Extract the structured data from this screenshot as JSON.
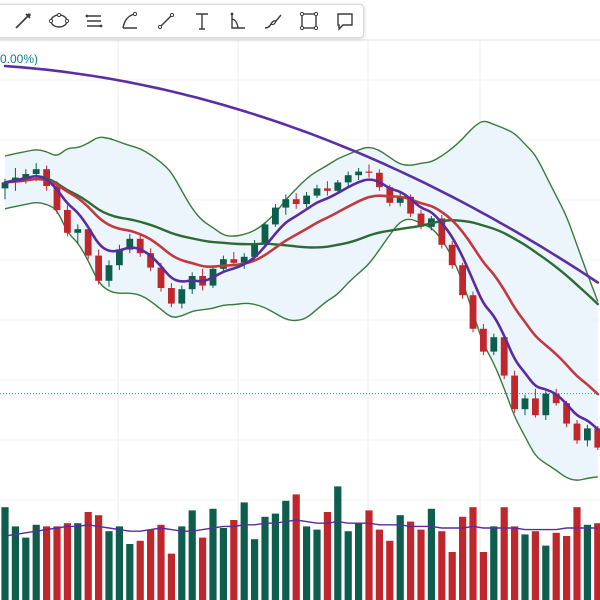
{
  "toolbar": {
    "tools": [
      {
        "name": "pencil-icon"
      },
      {
        "name": "ellipse-icon"
      },
      {
        "name": "parallel-lines-icon"
      },
      {
        "name": "arc-icon"
      },
      {
        "name": "trend-line-icon"
      },
      {
        "name": "text-icon"
      },
      {
        "name": "angle-icon"
      },
      {
        "name": "brush-icon"
      },
      {
        "name": "rectangle-icon"
      },
      {
        "name": "comment-icon"
      }
    ]
  },
  "legend": {
    "percent_text": "0.00%)"
  },
  "chart_data": {
    "type": "candlestick",
    "colors": {
      "up": "#0d5e4c",
      "down": "#c0272d",
      "ema_fast": "#5a2ca0",
      "ema_slow": "#c23a3f",
      "sma_long": "#2d6a36",
      "trend_200": "#5b2fa3",
      "bands": "#3a7a3a",
      "band_fill": "#e8f3fa"
    },
    "price": [
      [
        54.3,
        55.1,
        53.4,
        54.8
      ],
      [
        54.8,
        56.0,
        54.1,
        55.2
      ],
      [
        55.2,
        55.9,
        54.7,
        55.5
      ],
      [
        55.5,
        56.4,
        54.9,
        55.9
      ],
      [
        55.9,
        56.2,
        54.1,
        54.5
      ],
      [
        54.5,
        54.9,
        52.2,
        52.5
      ],
      [
        52.5,
        52.9,
        50.3,
        50.6
      ],
      [
        50.6,
        51.3,
        49.7,
        50.9
      ],
      [
        50.9,
        51.1,
        48.4,
        48.7
      ],
      [
        48.7,
        49.2,
        46.3,
        46.6
      ],
      [
        46.6,
        48.3,
        46.1,
        47.9
      ],
      [
        47.9,
        49.6,
        47.5,
        49.2
      ],
      [
        49.2,
        50.5,
        48.9,
        50.1
      ],
      [
        50.1,
        50.4,
        48.6,
        48.9
      ],
      [
        48.9,
        49.3,
        47.4,
        47.7
      ],
      [
        47.7,
        48.1,
        45.7,
        46.0
      ],
      [
        46.0,
        46.4,
        44.4,
        44.7
      ],
      [
        44.7,
        46.2,
        44.3,
        45.9
      ],
      [
        45.9,
        47.3,
        45.5,
        47.0
      ],
      [
        47.0,
        47.6,
        45.8,
        46.2
      ],
      [
        46.2,
        47.8,
        46.0,
        47.6
      ],
      [
        47.6,
        48.7,
        47.3,
        48.4
      ],
      [
        48.4,
        49.0,
        47.8,
        48.1
      ],
      [
        48.1,
        48.9,
        47.6,
        48.6
      ],
      [
        48.6,
        50.0,
        48.4,
        49.7
      ],
      [
        49.7,
        51.5,
        49.5,
        51.3
      ],
      [
        51.3,
        53.0,
        51.1,
        52.7
      ],
      [
        52.7,
        53.8,
        52.1,
        53.4
      ],
      [
        53.4,
        53.9,
        52.6,
        53.0
      ],
      [
        53.0,
        54.0,
        52.7,
        53.7
      ],
      [
        53.7,
        54.6,
        53.5,
        54.3
      ],
      [
        54.3,
        54.9,
        53.7,
        54.1
      ],
      [
        54.1,
        55.0,
        53.9,
        54.8
      ],
      [
        54.8,
        55.7,
        54.5,
        55.4
      ],
      [
        55.4,
        56.0,
        55.0,
        55.7
      ],
      [
        55.7,
        56.3,
        55.2,
        55.6
      ],
      [
        55.6,
        55.9,
        54.1,
        54.4
      ],
      [
        54.4,
        54.6,
        52.8,
        53.1
      ],
      [
        53.1,
        53.9,
        52.8,
        53.6
      ],
      [
        53.6,
        53.8,
        51.9,
        52.2
      ],
      [
        52.2,
        52.5,
        50.9,
        51.1
      ],
      [
        51.1,
        52.0,
        50.8,
        51.8
      ],
      [
        51.8,
        52.1,
        49.3,
        49.6
      ],
      [
        49.6,
        49.9,
        47.6,
        47.9
      ],
      [
        47.9,
        48.1,
        45.1,
        45.4
      ],
      [
        45.4,
        45.7,
        42.3,
        42.6
      ],
      [
        42.6,
        43.0,
        40.4,
        40.7
      ],
      [
        40.7,
        42.2,
        40.4,
        41.9
      ],
      [
        41.9,
        42.0,
        38.4,
        38.7
      ],
      [
        38.7,
        39.1,
        35.6,
        35.9
      ],
      [
        35.9,
        37.1,
        35.4,
        36.8
      ],
      [
        36.8,
        37.6,
        35.2,
        35.4
      ],
      [
        35.4,
        37.4,
        35.0,
        37.2
      ],
      [
        37.2,
        37.6,
        36.2,
        36.4
      ],
      [
        36.4,
        36.6,
        34.4,
        34.7
      ],
      [
        34.7,
        35.0,
        33.0,
        33.3
      ],
      [
        33.3,
        34.6,
        32.8,
        34.3
      ],
      [
        34.3,
        34.5,
        32.5,
        32.7
      ]
    ],
    "volume": [
      0.58,
      0.46,
      0.39,
      0.47,
      0.46,
      0.46,
      0.48,
      0.48,
      0.55,
      0.53,
      0.43,
      0.46,
      0.35,
      0.37,
      0.44,
      0.47,
      0.29,
      0.46,
      0.56,
      0.39,
      0.57,
      0.45,
      0.5,
      0.61,
      0.38,
      0.52,
      0.54,
      0.62,
      0.66,
      0.46,
      0.44,
      0.55,
      0.71,
      0.43,
      0.48,
      0.56,
      0.44,
      0.37,
      0.53,
      0.49,
      0.44,
      0.57,
      0.43,
      0.3,
      0.52,
      0.58,
      0.3,
      0.46,
      0.58,
      0.46,
      0.41,
      0.43,
      0.34,
      0.42,
      0.4,
      0.58,
      0.47,
      0.48
    ],
    "volume_ma": [
      0.4,
      0.41,
      0.42,
      0.43,
      0.44,
      0.45,
      0.46,
      0.46,
      0.47,
      0.46,
      0.45,
      0.44,
      0.43,
      0.43,
      0.44,
      0.45,
      0.44,
      0.43,
      0.43,
      0.44,
      0.45,
      0.46,
      0.46,
      0.47,
      0.47,
      0.48,
      0.48,
      0.49,
      0.5,
      0.49,
      0.48,
      0.48,
      0.49,
      0.48,
      0.48,
      0.48,
      0.47,
      0.47,
      0.47,
      0.46,
      0.46,
      0.46,
      0.45,
      0.45,
      0.45,
      0.46,
      0.45,
      0.45,
      0.45,
      0.45,
      0.44,
      0.44,
      0.44,
      0.44,
      0.45,
      0.45,
      0.45,
      0.45
    ]
  }
}
